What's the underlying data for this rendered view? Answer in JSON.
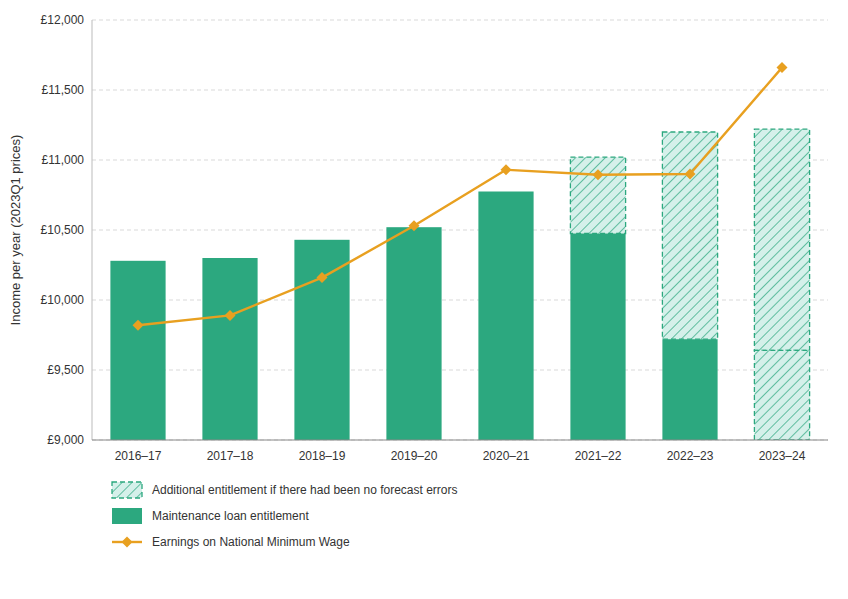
{
  "chart_data": {
    "type": "bar",
    "ylabel": "Income per year (2023Q1 prices)",
    "categories": [
      "2016–17",
      "2017–18",
      "2018–19",
      "2019–20",
      "2020–21",
      "2021–22",
      "2022–23",
      "2023–24"
    ],
    "series": [
      {
        "name": "Additional entitlement if there had been no forecast errors",
        "type": "bar",
        "color": "#d5f0ea",
        "line_style": "dashed",
        "bottom": [
          null,
          null,
          null,
          null,
          null,
          10475,
          9720,
          9640
        ],
        "values": [
          null,
          null,
          null,
          null,
          null,
          11020,
          11200,
          11220
        ]
      },
      {
        "name": "Maintenance loan entitlement",
        "type": "bar",
        "color": "#2ca87f",
        "colors": [
          "#2ca87f",
          "#2ca87f",
          "#2ca87f",
          "#2ca87f",
          "#2ca87f",
          "#2ca87f",
          "#2ca87f",
          "#d5f0ea"
        ],
        "values": [
          10280,
          10300,
          10430,
          10520,
          10775,
          10475,
          9720,
          9640
        ]
      },
      {
        "name": "Earnings on National Minimum Wage",
        "type": "line",
        "color": "#e8a020",
        "marker": "diamond",
        "values": [
          9820,
          9890,
          10160,
          10530,
          10930,
          10895,
          10900,
          11660
        ]
      }
    ],
    "ylim": [
      9000,
      12000
    ],
    "yticks": [
      {
        "value": 9000,
        "label": "£9,000"
      },
      {
        "value": 9500,
        "label": "£9,500"
      },
      {
        "value": 10000,
        "label": "£10,000"
      },
      {
        "value": 10500,
        "label": "£10,500"
      },
      {
        "value": 11000,
        "label": "£11,000"
      },
      {
        "value": 11500,
        "label": "£11,500"
      },
      {
        "value": 12000,
        "label": "£12,000"
      }
    ],
    "grid": true,
    "legend": "bottom"
  }
}
